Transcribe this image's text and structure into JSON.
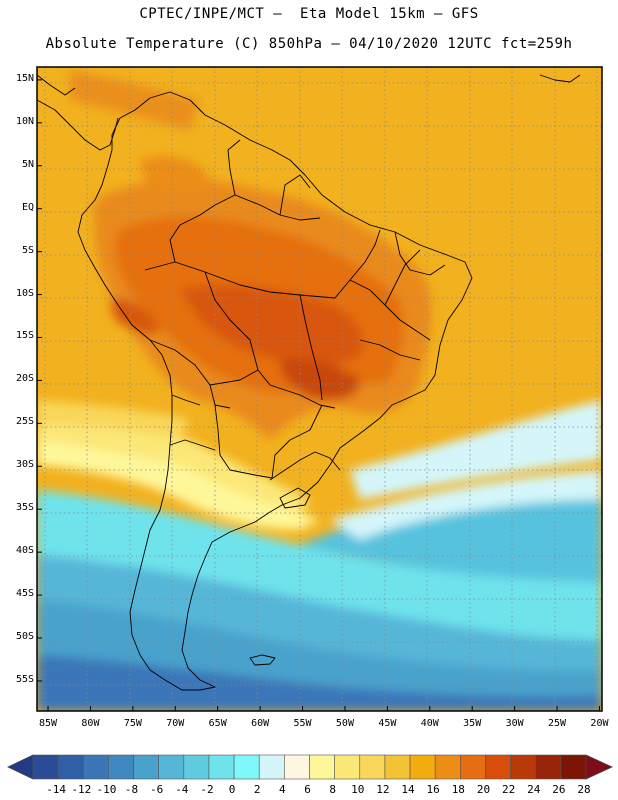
{
  "header": {
    "line1": "CPTEC/INPE/MCT –  Eta Model 15km – GFS",
    "line2": "Absolute Temperature (C) 850hPa – 04/10/2020 12UTC fct=259h"
  },
  "map": {
    "lat_labels": [
      "15N",
      "10N",
      "5N",
      "EQ",
      "5S",
      "10S",
      "15S",
      "20S",
      "25S",
      "30S",
      "35S",
      "40S",
      "45S",
      "50S",
      "55S"
    ],
    "lon_labels": [
      "85W",
      "80W",
      "75W",
      "70W",
      "65W",
      "60W",
      "55W",
      "50W",
      "45W",
      "40W",
      "35W",
      "30W",
      "25W",
      "20W"
    ],
    "lat_range": [
      16.5,
      -58.5
    ],
    "lon_range": [
      -86.3,
      -19.7
    ]
  },
  "colorbar": {
    "labels": [
      "-14",
      "-12",
      "-10",
      "-8",
      "-6",
      "-4",
      "-2",
      "0",
      "2",
      "4",
      "6",
      "8",
      "10",
      "12",
      "14",
      "16",
      "18",
      "20",
      "22",
      "24",
      "26",
      "28"
    ],
    "colors": [
      "#2b4c96",
      "#2f5fa6",
      "#3a76b8",
      "#3f88c0",
      "#48a2cc",
      "#56b6d8",
      "#5fcce0",
      "#6ee3ec",
      "#7ef8fa",
      "#d4f6fa",
      "#fef8e2",
      "#fef79a",
      "#fce878",
      "#f9d75a",
      "#f4c236",
      "#f2ac0e",
      "#ec8d16",
      "#e56d12",
      "#d74e0a",
      "#b83a09",
      "#972309",
      "#7b1607"
    ],
    "under_color": "#233b84",
    "over_color": "#7f0c19"
  }
}
